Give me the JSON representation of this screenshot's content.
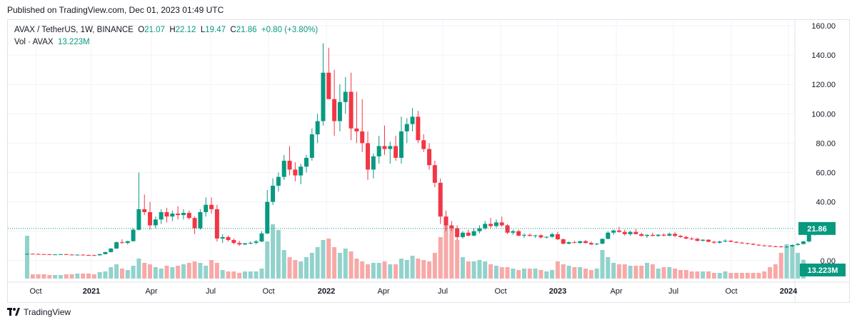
{
  "header": {
    "published": "Published on TradingView.com, Dec 01, 2023 01:49 UTC"
  },
  "legend": {
    "symbol": "AVAX / TetherUS, 1W, BINANCE",
    "o_label": "O",
    "o": "21.07",
    "h_label": "H",
    "h": "22.12",
    "l_label": "L",
    "l": "19.47",
    "c_label": "C",
    "c": "21.86",
    "change": "+0.80 (+3.80%)",
    "vol_label": "Vol · AVAX",
    "vol_value": "13.223M"
  },
  "footer": {
    "brand": "TradingView"
  },
  "colors": {
    "up": "#089981",
    "down": "#f23645",
    "vol_up": "#92d2cc",
    "vol_down": "#f7a9a7"
  },
  "chart_data": {
    "type": "candlestick",
    "title": "",
    "symbol": "AVAX / TetherUS",
    "interval": "1W",
    "exchange": "BINANCE",
    "y_axis": {
      "position": "right",
      "range": [
        -10,
        160
      ],
      "ticks": [
        "160.00",
        "140.00",
        "120.00",
        "100.00",
        "80.00",
        "60.00",
        "40.00",
        "0.00"
      ]
    },
    "x_axis_ticks": [
      "Oct",
      "2021",
      "Apr",
      "Jul",
      "Oct",
      "2022",
      "Apr",
      "Jul",
      "Oct",
      "2023",
      "Apr",
      "Jul",
      "Oct",
      "2024"
    ],
    "bold_ticks": [
      "2021",
      "2022",
      "2023",
      "2024"
    ],
    "last_price_label": "21.86",
    "last_volume_label": "13.223M",
    "grid": true,
    "price_series": [
      [
        4.5,
        4.8,
        4.2,
        4.6
      ],
      [
        4.6,
        4.9,
        4.3,
        4.5
      ],
      [
        4.5,
        4.8,
        4.2,
        4.4
      ],
      [
        4.4,
        4.6,
        4.0,
        4.3
      ],
      [
        4.3,
        4.5,
        3.9,
        4.1
      ],
      [
        4.1,
        4.4,
        3.8,
        4.2
      ],
      [
        4.2,
        4.5,
        3.9,
        4.3
      ],
      [
        4.3,
        4.6,
        4.0,
        4.1
      ],
      [
        4.1,
        4.4,
        3.7,
        3.9
      ],
      [
        3.9,
        4.2,
        3.6,
        4.0
      ],
      [
        4.0,
        4.3,
        3.7,
        3.8
      ],
      [
        3.8,
        4.1,
        3.5,
        3.7
      ],
      [
        3.7,
        4.0,
        3.4,
        3.6
      ],
      [
        3.6,
        4.5,
        3.4,
        4.4
      ],
      [
        4.4,
        6.0,
        4.2,
        5.8
      ],
      [
        5.8,
        8.5,
        5.5,
        8.2
      ],
      [
        8.2,
        13.0,
        8.0,
        12.5
      ],
      [
        12.5,
        14.5,
        11.5,
        12.0
      ],
      [
        12.0,
        13.5,
        11.0,
        13.2
      ],
      [
        13.2,
        22.0,
        13.0,
        21.0
      ],
      [
        21.0,
        60.0,
        20.5,
        35.0
      ],
      [
        35.0,
        45.0,
        31.0,
        33.0
      ],
      [
        33.0,
        40.0,
        21.0,
        24.0
      ],
      [
        24.0,
        30.0,
        22.0,
        28.0
      ],
      [
        28.0,
        35.0,
        25.0,
        33.0
      ],
      [
        33.0,
        36.0,
        26.0,
        30.0
      ],
      [
        30.0,
        34.0,
        27.0,
        32.0
      ],
      [
        32.0,
        37.0,
        28.0,
        31.0
      ],
      [
        31.0,
        35.0,
        28.0,
        32.5
      ],
      [
        32.5,
        34.0,
        28.0,
        29.0
      ],
      [
        29.0,
        30.0,
        18.0,
        22.0
      ],
      [
        22.0,
        35.0,
        21.0,
        33.0
      ],
      [
        33.0,
        43.0,
        30.0,
        38.0
      ],
      [
        38.0,
        43.0,
        32.0,
        35.0
      ],
      [
        35.0,
        38.0,
        13.0,
        15.0
      ],
      [
        15.0,
        18.0,
        12.0,
        16.0
      ],
      [
        16.0,
        17.0,
        13.0,
        14.0
      ],
      [
        14.0,
        15.0,
        11.0,
        12.0
      ],
      [
        12.0,
        13.5,
        10.0,
        11.0
      ],
      [
        11.0,
        12.0,
        10.5,
        11.8
      ],
      [
        11.8,
        13.0,
        11.0,
        12.1
      ],
      [
        12.1,
        14.0,
        11.0,
        13.0
      ],
      [
        13.0,
        20.0,
        12.5,
        18.5
      ],
      [
        18.5,
        48.0,
        18.0,
        40.0
      ],
      [
        40.0,
        56.0,
        38.0,
        51.0
      ],
      [
        51.0,
        60.0,
        47.0,
        57.0
      ],
      [
        57.0,
        72.0,
        55.0,
        68.0
      ],
      [
        68.0,
        78.0,
        58.0,
        62.0
      ],
      [
        62.0,
        67.0,
        54.0,
        58.0
      ],
      [
        58.0,
        66.0,
        52.0,
        64.0
      ],
      [
        64.0,
        72.0,
        60.0,
        70.0
      ],
      [
        70.0,
        90.0,
        68.0,
        86.0
      ],
      [
        86.0,
        100.0,
        80.0,
        95.0
      ],
      [
        95.0,
        148.0,
        92.0,
        128.0
      ],
      [
        128.0,
        145.0,
        110.0,
        110.0
      ],
      [
        110.0,
        130.0,
        85.0,
        95.0
      ],
      [
        95.0,
        120.0,
        88.0,
        108.0
      ],
      [
        108.0,
        125.0,
        100.0,
        115.0
      ],
      [
        115.0,
        128.0,
        82.0,
        90.0
      ],
      [
        90.0,
        115.0,
        80.0,
        88.0
      ],
      [
        88.0,
        110.0,
        74.0,
        80.0
      ],
      [
        80.0,
        88.0,
        55.0,
        62.0
      ],
      [
        62.0,
        73.0,
        56.0,
        71.0
      ],
      [
        71.0,
        85.0,
        66.0,
        78.0
      ],
      [
        78.0,
        92.0,
        72.0,
        76.0
      ],
      [
        76.0,
        81.0,
        66.0,
        78.0
      ],
      [
        78.0,
        85.0,
        68.0,
        70.0
      ],
      [
        70.0,
        98.0,
        66.0,
        88.0
      ],
      [
        88.0,
        97.0,
        80.0,
        93.0
      ],
      [
        93.0,
        104.0,
        88.0,
        98.0
      ],
      [
        98.0,
        102.0,
        80.0,
        82.0
      ],
      [
        82.0,
        86.0,
        74.0,
        76.0
      ],
      [
        76.0,
        80.0,
        62.0,
        65.0
      ],
      [
        65.0,
        68.0,
        50.0,
        53.0
      ],
      [
        53.0,
        56.0,
        25.0,
        30.0
      ],
      [
        30.0,
        34.0,
        20.0,
        24.0
      ],
      [
        24.0,
        27.0,
        20.0,
        22.0
      ],
      [
        22.0,
        24.0,
        14.0,
        16.0
      ],
      [
        16.0,
        20.0,
        15.0,
        19.0
      ],
      [
        19.0,
        21.0,
        16.5,
        17.0
      ],
      [
        17.0,
        22.0,
        16.5,
        20.0
      ],
      [
        20.0,
        24.0,
        18.5,
        22.0
      ],
      [
        22.0,
        27.0,
        21.0,
        25.0
      ],
      [
        25.0,
        29.0,
        22.0,
        23.5
      ],
      [
        23.5,
        28.0,
        22.5,
        26.0
      ],
      [
        26.0,
        30.0,
        23.0,
        24.0
      ],
      [
        24.0,
        25.0,
        18.0,
        19.0
      ],
      [
        19.0,
        21.0,
        17.5,
        20.0
      ],
      [
        20.0,
        21.0,
        16.5,
        17.0
      ],
      [
        17.0,
        18.5,
        15.5,
        17.5
      ],
      [
        17.5,
        18.5,
        16.5,
        16.8
      ],
      [
        16.8,
        17.5,
        15.5,
        17.2
      ],
      [
        17.2,
        18.0,
        15.0,
        15.8
      ],
      [
        15.8,
        16.5,
        15.0,
        16.2
      ],
      [
        16.2,
        19.0,
        15.5,
        18.0
      ],
      [
        18.0,
        19.5,
        14.0,
        14.5
      ],
      [
        14.5,
        15.0,
        11.0,
        11.5
      ],
      [
        11.5,
        13.0,
        11.0,
        12.5
      ],
      [
        12.5,
        13.5,
        11.8,
        12.0
      ],
      [
        12.0,
        13.5,
        11.5,
        13.2
      ],
      [
        13.2,
        14.0,
        11.5,
        12.0
      ],
      [
        12.0,
        13.0,
        10.5,
        11.0
      ],
      [
        11.0,
        12.0,
        10.5,
        11.5
      ],
      [
        11.5,
        15.0,
        11.2,
        14.8
      ],
      [
        14.8,
        20.0,
        14.5,
        19.0
      ],
      [
        19.0,
        21.0,
        17.5,
        20.5
      ],
      [
        20.5,
        23.0,
        19.0,
        19.5
      ],
      [
        19.5,
        21.0,
        17.0,
        18.0
      ],
      [
        18.0,
        20.5,
        17.0,
        19.5
      ],
      [
        19.5,
        21.5,
        18.0,
        18.0
      ],
      [
        18.0,
        19.0,
        16.5,
        16.8
      ],
      [
        16.8,
        18.0,
        15.5,
        17.5
      ],
      [
        17.5,
        19.0,
        16.5,
        16.8
      ],
      [
        16.8,
        18.0,
        16.2,
        17.6
      ],
      [
        17.6,
        18.5,
        16.5,
        17.0
      ],
      [
        17.0,
        19.0,
        16.5,
        18.2
      ],
      [
        18.2,
        19.5,
        16.0,
        16.8
      ],
      [
        16.8,
        17.5,
        15.5,
        16.0
      ],
      [
        16.0,
        17.0,
        14.5,
        15.0
      ],
      [
        15.0,
        16.0,
        14.0,
        14.8
      ],
      [
        14.8,
        15.5,
        13.0,
        13.5
      ],
      [
        13.5,
        14.5,
        13.0,
        14.2
      ],
      [
        14.2,
        14.5,
        12.5,
        12.8
      ],
      [
        12.8,
        13.5,
        11.5,
        12.2
      ],
      [
        12.2,
        13.5,
        11.5,
        13.0
      ],
      [
        13.0,
        14.5,
        12.5,
        13.5
      ],
      [
        13.5,
        14.0,
        12.5,
        12.8
      ],
      [
        12.8,
        13.0,
        12.0,
        12.2
      ],
      [
        12.2,
        12.8,
        11.5,
        11.8
      ],
      [
        11.8,
        12.2,
        11.0,
        11.4
      ],
      [
        11.4,
        11.8,
        10.5,
        10.8
      ],
      [
        10.8,
        11.2,
        10.0,
        10.3
      ],
      [
        10.3,
        10.8,
        9.8,
        10.1
      ],
      [
        10.1,
        10.5,
        9.5,
        9.7
      ],
      [
        9.7,
        10.2,
        9.3,
        9.6
      ],
      [
        9.6,
        10.0,
        8.9,
        9.2
      ],
      [
        9.2,
        9.8,
        8.7,
        9.5
      ],
      [
        9.5,
        11.0,
        9.2,
        10.6
      ],
      [
        10.6,
        12.0,
        10.2,
        11.3
      ],
      [
        11.3,
        13.5,
        11.0,
        13.0
      ],
      [
        13.0,
        19.0,
        12.5,
        18.0
      ],
      [
        18.0,
        26.0,
        17.0,
        24.0
      ],
      [
        24.0,
        25.5,
        19.0,
        21.07
      ],
      [
        21.07,
        22.12,
        19.47,
        21.86
      ]
    ],
    "volume_series": [
      30,
      3,
      3,
      3,
      2.5,
      2.5,
      2.5,
      3,
      3,
      3.5,
      3.5,
      3.5,
      3,
      4.5,
      5,
      8,
      10,
      7,
      6,
      9,
      14,
      11,
      10,
      8,
      7,
      9,
      8,
      9,
      10,
      11,
      12,
      11,
      9,
      13,
      11,
      6,
      5,
      5,
      4,
      5,
      5,
      5,
      7,
      26,
      38,
      34,
      20,
      15,
      13,
      12,
      15,
      18,
      22,
      27,
      28,
      22,
      18,
      21,
      19,
      14,
      12,
      10,
      11,
      11,
      12,
      10,
      10,
      14,
      13,
      16,
      14,
      13,
      12,
      18,
      29,
      39,
      36,
      27,
      15,
      12,
      12,
      13,
      12,
      10,
      9,
      8,
      8,
      7,
      6,
      7,
      7,
      7,
      6,
      5,
      6,
      12,
      10,
      9,
      8,
      8,
      7,
      6,
      7,
      20,
      15,
      11,
      10,
      10,
      9,
      9,
      9,
      11,
      10,
      7,
      8,
      8,
      7,
      6,
      6,
      5,
      5,
      5,
      5,
      4,
      4,
      5,
      4,
      4,
      4,
      4,
      4,
      4,
      5,
      8,
      10,
      18,
      24,
      22,
      18,
      13.2
    ]
  }
}
